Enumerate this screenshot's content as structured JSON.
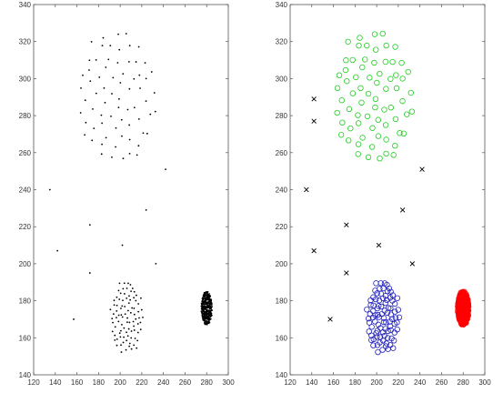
{
  "chart_data": [
    {
      "type": "scatter",
      "title": "",
      "xlabel": "",
      "ylabel": "",
      "xlim": [
        120,
        300
      ],
      "ylim": [
        140,
        340
      ],
      "xticks": [
        "120",
        "140",
        "160",
        "180",
        "200",
        "220",
        "240",
        "260",
        "280",
        "300"
      ],
      "yticks": [
        "140",
        "160",
        "180",
        "200",
        "220",
        "240",
        "260",
        "280",
        "300",
        "320",
        "340"
      ],
      "grid": false,
      "series": [
        {
          "marker": "dot",
          "color": "#000000",
          "clusters": [
            {
              "cx": 197,
              "cy": 290,
              "rx": 37,
              "ry": 38,
              "count": 70,
              "seed": 11
            },
            {
              "cx": 206,
              "cy": 171,
              "rx": 15,
              "ry": 20,
              "count": 90,
              "seed": 23
            },
            {
              "cx": 280,
              "cy": 176,
              "rx": 5,
              "ry": 9,
              "count": 320,
              "seed": 37
            }
          ],
          "points": [
            [
              135,
              240
            ],
            [
              142,
              207
            ],
            [
              157,
              170
            ],
            [
              172,
              221
            ],
            [
              172,
              195
            ],
            [
              202,
              210
            ],
            [
              224,
              229
            ],
            [
              233,
              200
            ],
            [
              242,
              251
            ]
          ]
        }
      ]
    },
    {
      "type": "scatter",
      "title": "",
      "xlabel": "",
      "ylabel": "",
      "xlim": [
        120,
        300
      ],
      "ylim": [
        140,
        340
      ],
      "xticks": [
        "120",
        "140",
        "160",
        "180",
        "200",
        "220",
        "240",
        "260",
        "280",
        "300"
      ],
      "yticks": [
        "140",
        "160",
        "180",
        "200",
        "220",
        "240",
        "260",
        "280",
        "300",
        "320",
        "340"
      ],
      "grid": false,
      "series": [
        {
          "marker": "circle",
          "color": "#22cc22",
          "clusters": [
            {
              "cx": 197,
              "cy": 290,
              "rx": 37,
              "ry": 38,
              "count": 70,
              "seed": 11
            }
          ],
          "points": []
        },
        {
          "marker": "circle",
          "color": "#2222bb",
          "clusters": [
            {
              "cx": 206,
              "cy": 171,
              "rx": 15,
              "ry": 20,
              "count": 90,
              "seed": 23
            }
          ],
          "points": []
        },
        {
          "marker": "circle",
          "color": "#ff0000",
          "clusters": [
            {
              "cx": 280,
              "cy": 176,
              "rx": 5,
              "ry": 9,
              "count": 320,
              "seed": 37
            }
          ],
          "points": []
        },
        {
          "marker": "x",
          "color": "#000000",
          "clusters": [],
          "points": [
            [
              135,
              240
            ],
            [
              142,
              289
            ],
            [
              142,
              277
            ],
            [
              142,
              207
            ],
            [
              157,
              170
            ],
            [
              172,
              221
            ],
            [
              172,
              195
            ],
            [
              202,
              210
            ],
            [
              224,
              229
            ],
            [
              233,
              200
            ],
            [
              242,
              251
            ]
          ]
        }
      ]
    }
  ]
}
